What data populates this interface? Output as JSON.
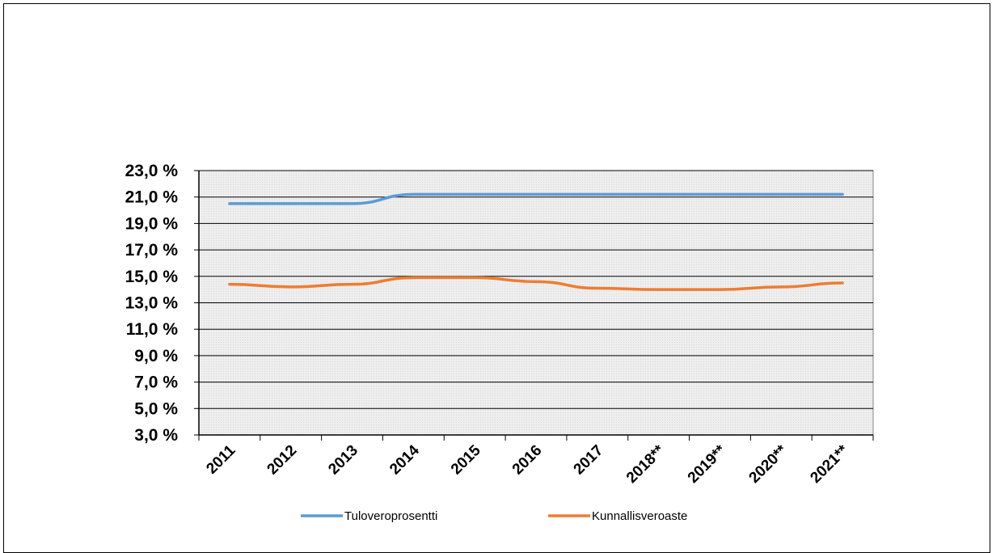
{
  "chart_data": {
    "type": "line",
    "title": "",
    "xlabel": "",
    "ylabel": "",
    "x": [
      "2011",
      "2012",
      "2013",
      "2014",
      "2015",
      "2016",
      "2017",
      "2018**",
      "2019**",
      "2020**",
      "2021**"
    ],
    "y_ticks": [
      "3,0 %",
      "5,0 %",
      "7,0 %",
      "9,0 %",
      "11,0 %",
      "13,0 %",
      "15,0 %",
      "17,0 %",
      "19,0 %",
      "21,0 %",
      "23,0 %"
    ],
    "ylim": [
      3.0,
      23.0
    ],
    "y_unit": "%",
    "grid": true,
    "legend_position": "bottom",
    "series": [
      {
        "name": "Tuloveroprosentti",
        "color": "#5b9bd5",
        "values": [
          20.5,
          20.5,
          20.5,
          21.2,
          21.2,
          21.2,
          21.2,
          21.2,
          21.2,
          21.2,
          21.2
        ]
      },
      {
        "name": "Kunnallisveroaste",
        "color": "#ed7d31",
        "values": [
          14.4,
          14.2,
          14.4,
          14.9,
          14.9,
          14.6,
          14.1,
          14.0,
          14.0,
          14.2,
          14.5
        ]
      }
    ]
  }
}
